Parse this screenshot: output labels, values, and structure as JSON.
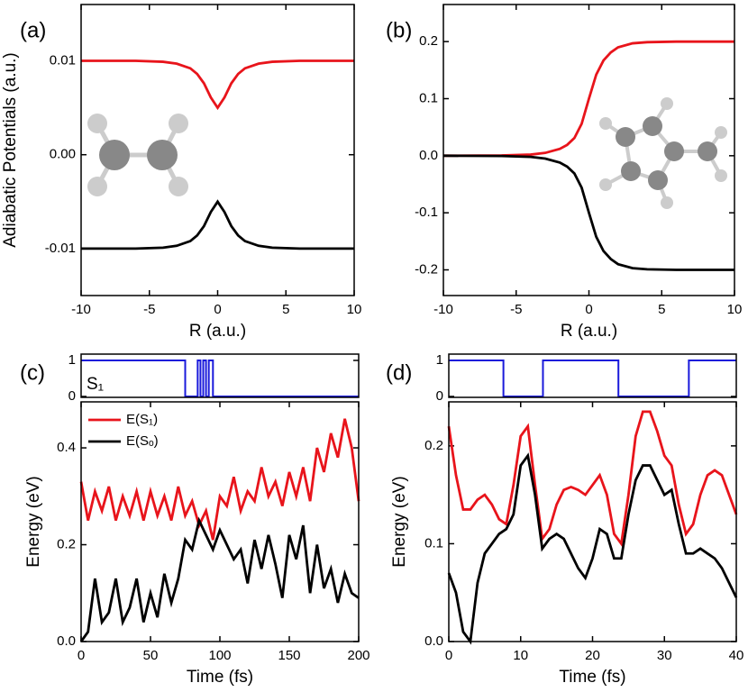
{
  "chart_data": [
    {
      "type": "line",
      "panel_label": "(a)",
      "x_label": "R (a.u.)",
      "y_label": "Adiabatic Potentials (a.u.)",
      "xlim": [
        -10,
        10
      ],
      "xticks": [
        -10,
        -5,
        0,
        5,
        10
      ],
      "ylim": [
        -0.015,
        0.016
      ],
      "yticks": [
        -0.01,
        {
          "value": 0,
          "label": "0.00"
        },
        0.01
      ],
      "x": [
        -10,
        -8,
        -6,
        -4,
        -3,
        -2,
        -1.5,
        -1,
        -0.5,
        0,
        0.5,
        1,
        1.5,
        2,
        3,
        4,
        6,
        8,
        10
      ],
      "series": [
        {
          "color": "#e8141b",
          "values": [
            0.01,
            0.01,
            0.01,
            0.0099,
            0.0097,
            0.0092,
            0.0086,
            0.0076,
            0.0061,
            0.005,
            0.0061,
            0.0076,
            0.0086,
            0.0092,
            0.0097,
            0.0099,
            0.01,
            0.01,
            0.01
          ]
        },
        {
          "color": "#000000",
          "values": [
            -0.01,
            -0.01,
            -0.01,
            -0.0099,
            -0.0097,
            -0.0092,
            -0.0086,
            -0.0076,
            -0.0061,
            -0.005,
            -0.0061,
            -0.0076,
            -0.0086,
            -0.0092,
            -0.0097,
            -0.0099,
            -0.01,
            -0.01,
            -0.01
          ]
        }
      ]
    },
    {
      "type": "line",
      "panel_label": "(b)",
      "x_label": "R (a.u.)",
      "xlim": [
        -10,
        10
      ],
      "xticks": [
        -10,
        -5,
        0,
        5,
        10
      ],
      "ylim": [
        -0.245,
        0.265
      ],
      "yticks": [
        -0.2,
        -0.1,
        {
          "value": 0,
          "label": "0.0"
        },
        0.1,
        0.2
      ],
      "x": [
        -10,
        -6,
        -4,
        -3,
        -2,
        -1.5,
        -1,
        -0.5,
        0,
        0.5,
        1,
        1.5,
        2,
        3,
        4,
        6,
        10
      ],
      "series": [
        {
          "color": "#e8141b",
          "values": [
            0,
            0.0005,
            0.002,
            0.005,
            0.012,
            0.019,
            0.031,
            0.056,
            0.1,
            0.142,
            0.167,
            0.181,
            0.19,
            0.197,
            0.199,
            0.2,
            0.2
          ]
        },
        {
          "color": "#000000",
          "values": [
            0,
            -0.0005,
            -0.002,
            -0.005,
            -0.012,
            -0.019,
            -0.031,
            -0.056,
            -0.1,
            -0.142,
            -0.167,
            -0.181,
            -0.19,
            -0.197,
            -0.199,
            -0.2,
            -0.2
          ]
        }
      ]
    },
    {
      "type": "line",
      "panel_label": "(c)",
      "annotation": "S₁",
      "xlim": [
        0,
        200
      ],
      "ylim": [
        -0.025,
        1.175
      ],
      "yticks": [
        0,
        1
      ],
      "x": [
        0,
        75,
        75,
        84,
        84,
        86,
        86,
        88,
        88,
        90,
        90,
        92,
        92,
        95,
        95,
        200
      ],
      "series": [
        {
          "color": "#1a1adb",
          "values": [
            1,
            1,
            0,
            0,
            1,
            1,
            0,
            0,
            1,
            1,
            0,
            0,
            1,
            1,
            0,
            0
          ]
        }
      ]
    },
    {
      "type": "line",
      "x_label": "Time (fs)",
      "y_label": "Energy (eV)",
      "legend": "upper left",
      "xlim": [
        0,
        200
      ],
      "xticks": [
        0,
        50,
        100,
        150,
        200
      ],
      "ylim": [
        0,
        0.495
      ],
      "yticks": [
        {
          "value": 0,
          "label": "0.0"
        },
        0.2,
        0.4
      ],
      "x": [
        0,
        5,
        10,
        15,
        20,
        25,
        30,
        35,
        40,
        45,
        50,
        55,
        60,
        65,
        70,
        75,
        80,
        85,
        90,
        95,
        100,
        105,
        110,
        115,
        120,
        125,
        130,
        135,
        140,
        145,
        150,
        155,
        160,
        165,
        170,
        175,
        180,
        185,
        190,
        195,
        200
      ],
      "series": [
        {
          "name": "E(S₁)",
          "color": "#e8141b",
          "values": [
            0.33,
            0.25,
            0.31,
            0.27,
            0.32,
            0.25,
            0.3,
            0.26,
            0.31,
            0.25,
            0.31,
            0.26,
            0.3,
            0.25,
            0.32,
            0.26,
            0.29,
            0.24,
            0.27,
            0.21,
            0.3,
            0.28,
            0.34,
            0.27,
            0.31,
            0.29,
            0.36,
            0.3,
            0.33,
            0.28,
            0.35,
            0.3,
            0.36,
            0.29,
            0.4,
            0.35,
            0.43,
            0.38,
            0.46,
            0.4,
            0.29
          ]
        },
        {
          "name": "E(Sₒ)",
          "color": "#000000",
          "values": [
            0,
            0.02,
            0.13,
            0.04,
            0.06,
            0.13,
            0.04,
            0.07,
            0.13,
            0.04,
            0.1,
            0.05,
            0.14,
            0.08,
            0.13,
            0.21,
            0.19,
            0.25,
            0.22,
            0.19,
            0.23,
            0.2,
            0.17,
            0.19,
            0.12,
            0.21,
            0.15,
            0.22,
            0.16,
            0.09,
            0.22,
            0.17,
            0.24,
            0.1,
            0.2,
            0.11,
            0.15,
            0.08,
            0.14,
            0.1,
            0.09
          ]
        }
      ]
    },
    {
      "type": "line",
      "panel_label": "(d)",
      "xlim": [
        0,
        40
      ],
      "ylim": [
        -0.025,
        1.175
      ],
      "yticks": [
        0,
        1
      ],
      "x": [
        0,
        7.6,
        7.6,
        13.1,
        13.1,
        23.6,
        23.6,
        33.4,
        33.4,
        40
      ],
      "series": [
        {
          "color": "#1a1adb",
          "values": [
            1,
            1,
            0,
            0,
            1,
            1,
            0,
            0,
            1,
            1
          ]
        }
      ]
    },
    {
      "type": "line",
      "x_label": "Time (fs)",
      "y_label": "Energy (eV)",
      "xlim": [
        0,
        40
      ],
      "xticks": [
        0,
        10,
        20,
        30,
        40
      ],
      "ylim": [
        0,
        0.245
      ],
      "yticks": [
        {
          "value": 0,
          "label": "0.0"
        },
        0.1,
        0.2
      ],
      "x": [
        0,
        1,
        2,
        3,
        4,
        5,
        6,
        7,
        8,
        9,
        10,
        11,
        12,
        13,
        14,
        15,
        16,
        17,
        18,
        19,
        20,
        21,
        22,
        23,
        24,
        25,
        26,
        27,
        28,
        29,
        30,
        31,
        32,
        33,
        34,
        35,
        36,
        37,
        38,
        39,
        40
      ],
      "series": [
        {
          "color": "#e8141b",
          "values": [
            0.22,
            0.17,
            0.135,
            0.135,
            0.145,
            0.15,
            0.14,
            0.125,
            0.12,
            0.16,
            0.21,
            0.22,
            0.16,
            0.105,
            0.115,
            0.14,
            0.155,
            0.158,
            0.155,
            0.15,
            0.16,
            0.17,
            0.15,
            0.11,
            0.1,
            0.15,
            0.21,
            0.235,
            0.235,
            0.215,
            0.19,
            0.18,
            0.14,
            0.11,
            0.12,
            0.15,
            0.17,
            0.175,
            0.17,
            0.15,
            0.13
          ]
        },
        {
          "color": "#000000",
          "values": [
            0.07,
            0.05,
            0.01,
            0,
            0.06,
            0.09,
            0.1,
            0.11,
            0.115,
            0.13,
            0.18,
            0.19,
            0.15,
            0.095,
            0.105,
            0.11,
            0.105,
            0.09,
            0.075,
            0.065,
            0.085,
            0.115,
            0.11,
            0.085,
            0.085,
            0.13,
            0.165,
            0.18,
            0.18,
            0.165,
            0.15,
            0.155,
            0.12,
            0.09,
            0.09,
            0.095,
            0.09,
            0.085,
            0.075,
            0.06,
            0.045
          ]
        }
      ]
    }
  ]
}
